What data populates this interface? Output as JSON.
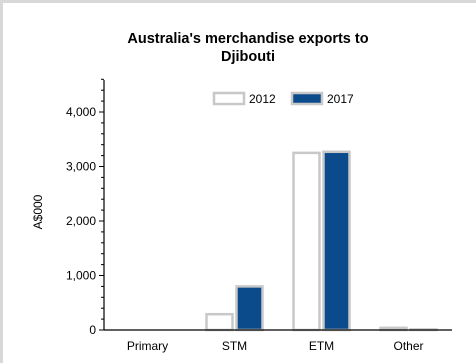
{
  "chart_data": {
    "type": "bar",
    "title_line1": "Australia's merchandise exports to",
    "title_line2": "Djibouti",
    "xlabel": "",
    "ylabel": "A$000",
    "categories": [
      "Primary",
      "STM",
      "ETM",
      "Other"
    ],
    "series": [
      {
        "name": "2012",
        "values": [
          0,
          290,
          3250,
          40
        ],
        "fill": "#ffffff",
        "stroke": "#c8c8c8"
      },
      {
        "name": "2017",
        "values": [
          0,
          800,
          3270,
          10
        ],
        "fill": "#0b4a8b",
        "stroke": "#c8c8c8"
      }
    ],
    "yticks": [
      0,
      1000,
      2000,
      3000,
      4000
    ],
    "ytick_labels": [
      "0",
      "1,000",
      "2,000",
      "3,000",
      "4,000"
    ],
    "ylim": [
      0,
      4600
    ],
    "grid": false,
    "legend_position": "top"
  }
}
